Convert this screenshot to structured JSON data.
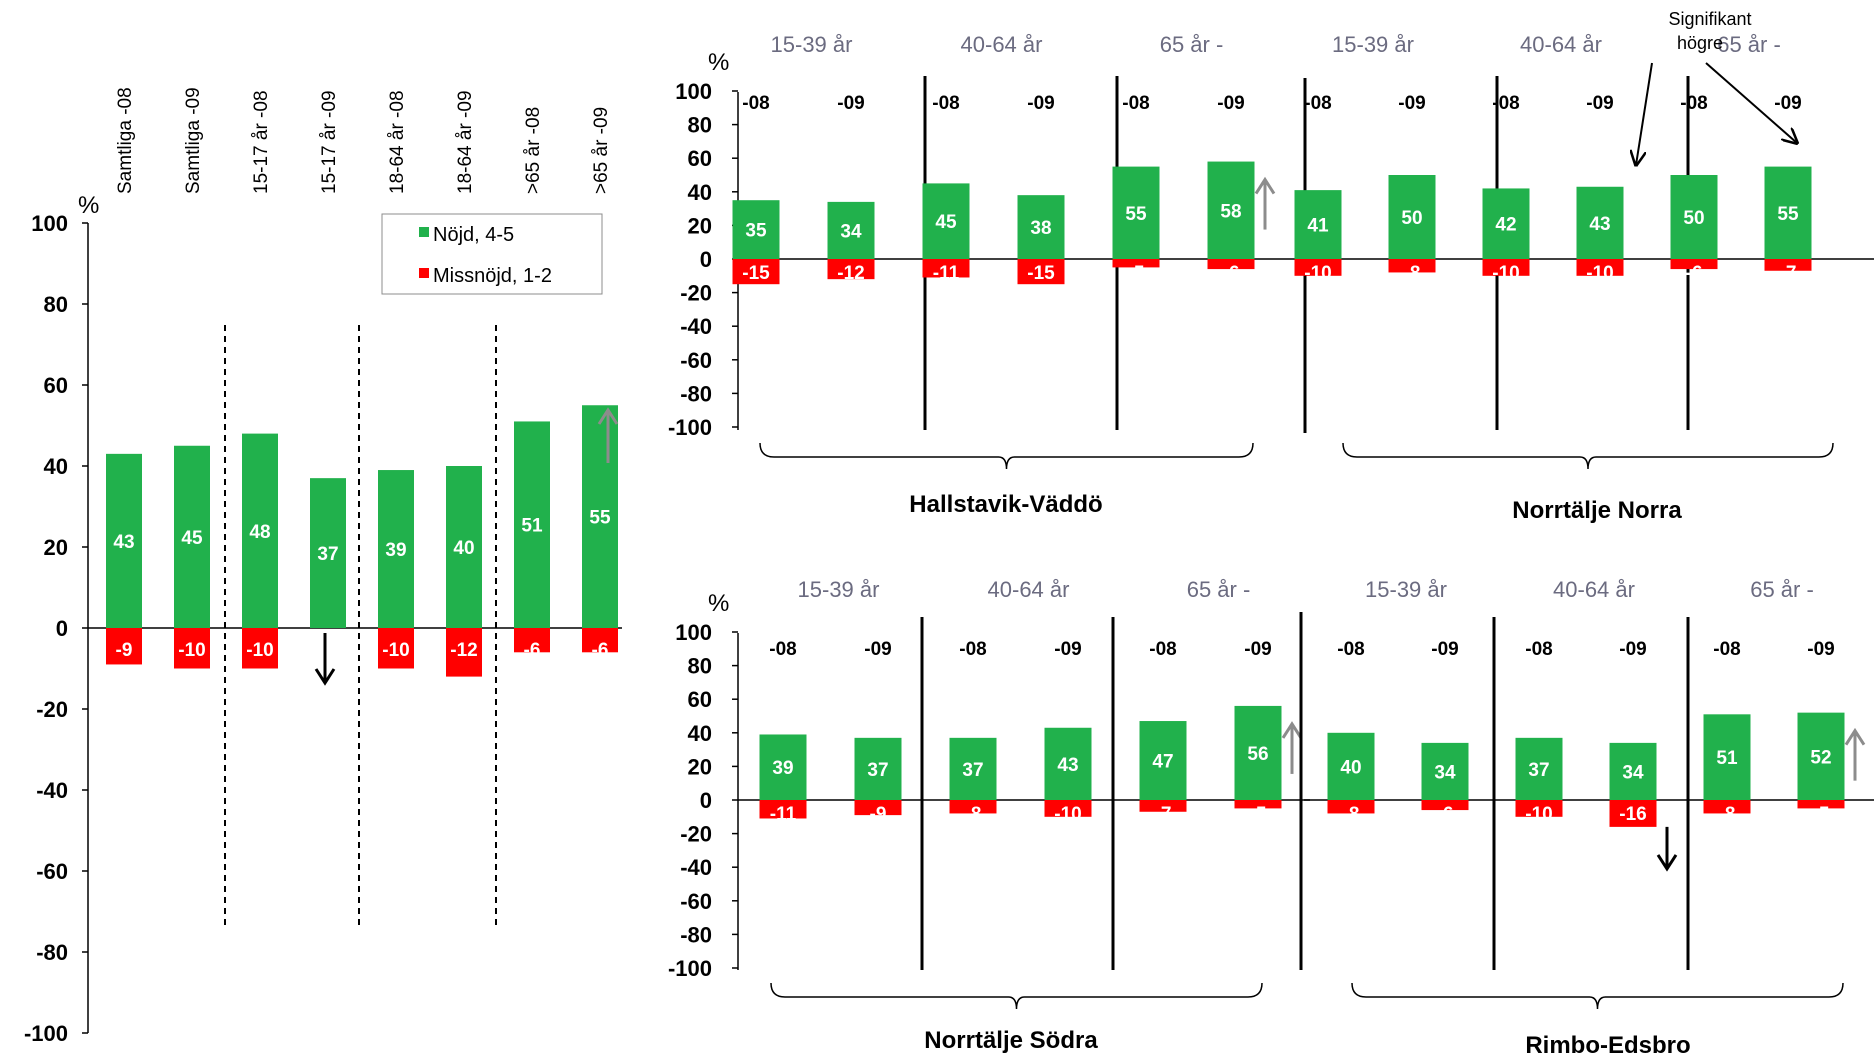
{
  "colors": {
    "positive": "#21b14c",
    "negative": "#ff0000",
    "sig_arrow_up": "#8c8c8c",
    "sig_arrow_down": "#000000"
  },
  "legend": {
    "items": [
      {
        "label": "Nöjd, 4-5",
        "color": "#21b14c"
      },
      {
        "label": "Missnöjd, 1-2",
        "color": "#ff0000"
      }
    ]
  },
  "annotation": {
    "lines": [
      "Signifikant",
      "högre"
    ]
  },
  "age_groups": [
    "15-39 år",
    "40-64 år",
    "65 år -"
  ],
  "years": [
    "-08",
    "-09"
  ],
  "chart_data": [
    {
      "type": "bar",
      "unit": "%",
      "ylim": [
        -100,
        100
      ],
      "yticks": [
        100,
        80,
        60,
        40,
        20,
        0,
        -20,
        -40,
        -60,
        -80,
        -100
      ],
      "categories": [
        "Samtliga -08",
        "Samtliga -09",
        "15-17 år -08",
        "15-17 år -09",
        "18-64 år -08",
        "18-64 år -09",
        ">65 år -08",
        ">65 år -09"
      ],
      "series": [
        {
          "name": "Nöjd, 4-5",
          "values": [
            43,
            45,
            48,
            37,
            39,
            40,
            51,
            55
          ]
        },
        {
          "name": "Missnöjd, 1-2",
          "values": [
            -9,
            -10,
            -10,
            null,
            -10,
            -12,
            -6,
            -6
          ]
        }
      ],
      "significance": [
        {
          "index": 7,
          "dir": "up"
        },
        {
          "index": 3,
          "dir": "down"
        }
      ]
    },
    {
      "type": "bar",
      "title": "Hallstavik-Väddö",
      "unit": "%",
      "ylim": [
        -100,
        100
      ],
      "yticks": [
        100,
        80,
        60,
        40,
        20,
        0,
        -20,
        -40,
        -60,
        -80,
        -100
      ],
      "series": [
        {
          "name": "Nöjd, 4-5",
          "values": [
            35,
            34,
            45,
            38,
            55,
            58
          ]
        },
        {
          "name": "Missnöjd, 1-2",
          "values": [
            -15,
            -12,
            -11,
            -15,
            -5,
            -6
          ]
        }
      ],
      "significance": [
        {
          "index": 5,
          "dir": "up"
        }
      ]
    },
    {
      "type": "bar",
      "title": "Norrtälje Norra",
      "unit": "%",
      "ylim": [
        -100,
        100
      ],
      "series": [
        {
          "name": "Nöjd, 4-5",
          "values": [
            41,
            50,
            42,
            43,
            50,
            55
          ]
        },
        {
          "name": "Missnöjd, 1-2",
          "values": [
            -10,
            -8,
            -10,
            -10,
            -6,
            -7
          ]
        }
      ],
      "significance": []
    },
    {
      "type": "bar",
      "title": "Norrtälje Södra",
      "unit": "%",
      "ylim": [
        -100,
        100
      ],
      "yticks": [
        100,
        80,
        60,
        40,
        20,
        0,
        -20,
        -40,
        -60,
        -80,
        -100
      ],
      "series": [
        {
          "name": "Nöjd, 4-5",
          "values": [
            39,
            37,
            37,
            43,
            47,
            56
          ]
        },
        {
          "name": "Missnöjd, 1-2",
          "values": [
            -11,
            -9,
            -8,
            -10,
            -7,
            -5
          ]
        }
      ],
      "significance": [
        {
          "index": 5,
          "dir": "up"
        }
      ]
    },
    {
      "type": "bar",
      "title": "Rimbo-Edsbro",
      "unit": "%",
      "ylim": [
        -100,
        100
      ],
      "series": [
        {
          "name": "Nöjd, 4-5",
          "values": [
            40,
            34,
            37,
            34,
            51,
            52
          ]
        },
        {
          "name": "Missnöjd, 1-2",
          "values": [
            -8,
            -6,
            -10,
            -16,
            -8,
            -5
          ]
        }
      ],
      "significance": [
        {
          "index": 5,
          "dir": "up"
        },
        {
          "index": 3,
          "dir": "down"
        }
      ]
    }
  ]
}
